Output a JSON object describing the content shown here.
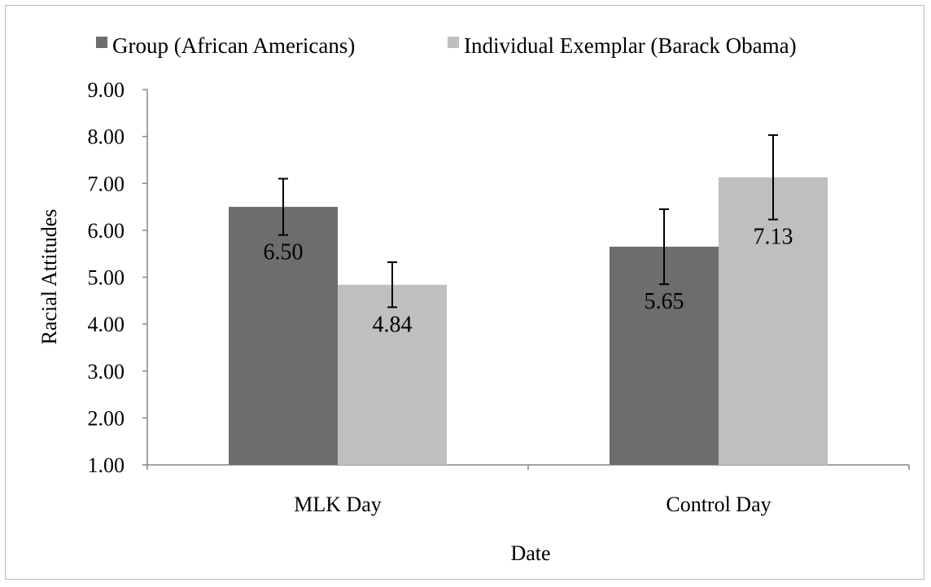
{
  "chart_data": {
    "type": "bar",
    "title": "",
    "xlabel": "Date",
    "ylabel": "Racial Attitudes",
    "categories": [
      "MLK Day",
      "Control Day"
    ],
    "series": [
      {
        "name": "Group (African Americans)",
        "color": "#6d6d6d",
        "values": [
          6.5,
          5.65
        ],
        "value_labels": [
          "6.50",
          "5.65"
        ],
        "error": [
          0.6,
          0.8
        ]
      },
      {
        "name": "Individual Exemplar (Barack Obama)",
        "color": "#bfbfbf",
        "values": [
          4.84,
          7.13
        ],
        "value_labels": [
          "4.84",
          "7.13"
        ],
        "error": [
          0.48,
          0.9
        ]
      }
    ],
    "ylim": [
      1.0,
      9.0
    ],
    "yticks": [
      "1.00",
      "2.00",
      "3.00",
      "4.00",
      "5.00",
      "6.00",
      "7.00",
      "8.00",
      "9.00"
    ],
    "grid": false,
    "legend_position": "top"
  }
}
